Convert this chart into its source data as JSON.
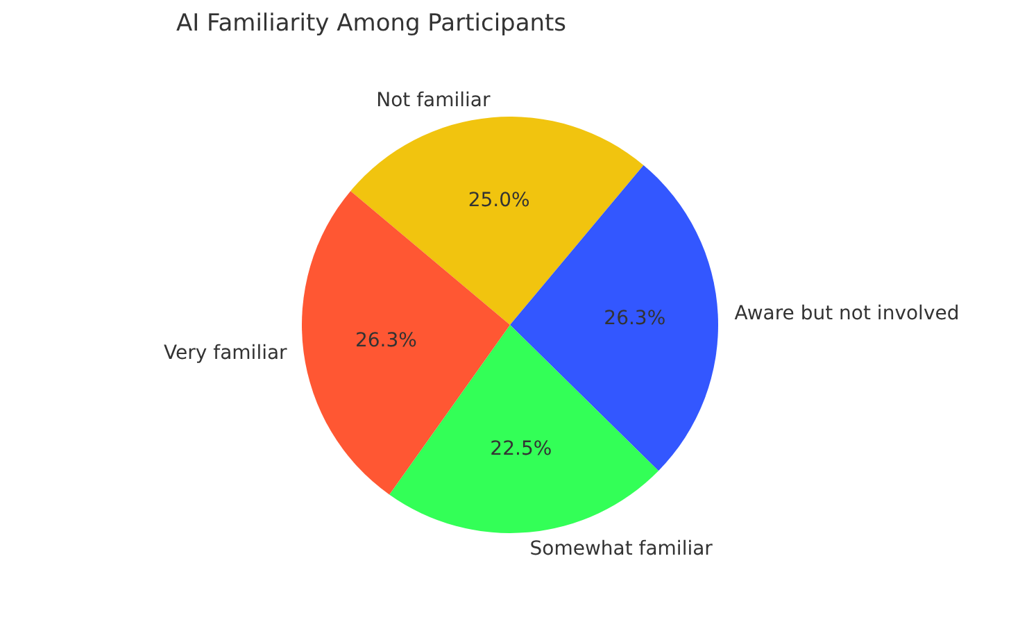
{
  "chart_data": {
    "type": "pie",
    "title": "AI Familiarity Among Participants",
    "categories": [
      "Very familiar",
      "Somewhat familiar",
      "Aware but not involved",
      "Not familiar"
    ],
    "values": [
      26.3,
      22.5,
      26.3,
      25.0
    ],
    "colors": [
      "#ff5733",
      "#33ff57",
      "#3357ff",
      "#f1c40f"
    ],
    "value_labels": [
      "26.3%",
      "22.5%",
      "26.3%",
      "25.0%"
    ],
    "legend": false
  }
}
